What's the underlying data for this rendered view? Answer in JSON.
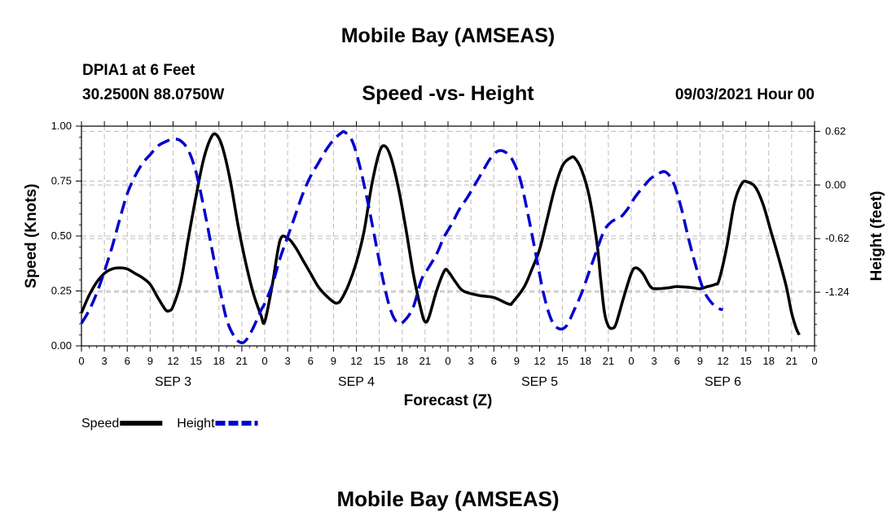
{
  "header": {
    "title": "Mobile Bay (AMSEAS)",
    "station": "DPIA1 at 6 Feet",
    "coords": "30.2500N  88.0750W",
    "datetime": "09/03/2021 Hour 00",
    "footer_title": "Mobile Bay (AMSEAS)"
  },
  "chart_data": {
    "type": "line",
    "title": "Speed -vs- Height",
    "xlabel": "Forecast (Z)",
    "ylabel": "Speed (Knots)",
    "y2label": "Height (feet)",
    "xlim": [
      0,
      96
    ],
    "ylim": [
      0,
      1.0
    ],
    "y2lim": [
      -1.86,
      0.68
    ],
    "grid": true,
    "legend_position": "bottom-left",
    "x_tick_labels": [
      "0",
      "3",
      "6",
      "9",
      "12",
      "15",
      "18",
      "21",
      "0",
      "3",
      "6",
      "9",
      "12",
      "15",
      "18",
      "21",
      "0",
      "3",
      "6",
      "9",
      "12",
      "15",
      "18",
      "21",
      "0",
      "3",
      "6",
      "9",
      "12",
      "15",
      "18",
      "21",
      "0"
    ],
    "y_tick_labels": [
      "0.00",
      "0.25",
      "0.50",
      "0.75",
      "1.00"
    ],
    "y_ticks": [
      0,
      0.25,
      0.5,
      0.75,
      1.0
    ],
    "y2_tick_labels": [
      "0.62",
      "0.00",
      "-0.62",
      "-1.24"
    ],
    "y2_ticks": [
      0.62,
      0.0,
      -0.62,
      -1.24
    ],
    "day_labels": [
      {
        "label": "SEP 3",
        "x": 12
      },
      {
        "label": "SEP 4",
        "x": 36
      },
      {
        "label": "SEP 5",
        "x": 60
      },
      {
        "label": "SEP 6",
        "x": 84
      }
    ],
    "series": [
      {
        "name": "Speed",
        "axis": "left",
        "color": "#000000",
        "style": "solid",
        "points": [
          [
            0,
            0.15
          ],
          [
            1,
            0.23
          ],
          [
            2,
            0.29
          ],
          [
            3,
            0.33
          ],
          [
            4,
            0.35
          ],
          [
            5,
            0.355
          ],
          [
            6,
            0.35
          ],
          [
            7,
            0.33
          ],
          [
            8,
            0.31
          ],
          [
            9,
            0.28
          ],
          [
            10,
            0.22
          ],
          [
            11,
            0.165
          ],
          [
            11.5,
            0.16
          ],
          [
            12,
            0.18
          ],
          [
            13,
            0.29
          ],
          [
            14,
            0.49
          ],
          [
            15,
            0.68
          ],
          [
            16,
            0.85
          ],
          [
            17,
            0.95
          ],
          [
            17.7,
            0.96
          ],
          [
            18.5,
            0.9
          ],
          [
            19.5,
            0.75
          ],
          [
            20.5,
            0.55
          ],
          [
            21.5,
            0.38
          ],
          [
            22.5,
            0.24
          ],
          [
            23.5,
            0.14
          ],
          [
            24,
            0.11
          ],
          [
            25,
            0.28
          ],
          [
            26,
            0.48
          ],
          [
            27,
            0.49
          ],
          [
            28,
            0.45
          ],
          [
            29,
            0.39
          ],
          [
            30,
            0.33
          ],
          [
            31,
            0.27
          ],
          [
            32,
            0.23
          ],
          [
            33,
            0.2
          ],
          [
            33.5,
            0.195
          ],
          [
            34,
            0.21
          ],
          [
            35,
            0.28
          ],
          [
            36,
            0.38
          ],
          [
            37,
            0.52
          ],
          [
            38,
            0.73
          ],
          [
            39,
            0.88
          ],
          [
            39.7,
            0.91
          ],
          [
            40.5,
            0.86
          ],
          [
            41.5,
            0.72
          ],
          [
            42.5,
            0.53
          ],
          [
            43.5,
            0.32
          ],
          [
            44.5,
            0.16
          ],
          [
            45,
            0.11
          ],
          [
            45.5,
            0.13
          ],
          [
            46.5,
            0.25
          ],
          [
            47.5,
            0.34
          ],
          [
            48,
            0.34
          ],
          [
            49,
            0.29
          ],
          [
            50,
            0.25
          ],
          [
            52,
            0.23
          ],
          [
            54,
            0.22
          ],
          [
            56,
            0.19
          ],
          [
            56.5,
            0.2
          ],
          [
            58,
            0.27
          ],
          [
            59,
            0.35
          ],
          [
            60,
            0.44
          ],
          [
            61,
            0.58
          ],
          [
            62,
            0.72
          ],
          [
            63,
            0.82
          ],
          [
            64,
            0.855
          ],
          [
            64.6,
            0.855
          ],
          [
            65.5,
            0.8
          ],
          [
            66.5,
            0.68
          ],
          [
            67.5,
            0.47
          ],
          [
            68,
            0.3
          ],
          [
            68.5,
            0.15
          ],
          [
            69,
            0.09
          ],
          [
            69.5,
            0.08
          ],
          [
            70,
            0.1
          ],
          [
            71,
            0.22
          ],
          [
            72,
            0.33
          ],
          [
            72.6,
            0.355
          ],
          [
            73.5,
            0.33
          ],
          [
            74.5,
            0.27
          ],
          [
            75.3,
            0.26
          ],
          [
            77,
            0.265
          ],
          [
            78,
            0.27
          ],
          [
            80,
            0.265
          ],
          [
            81,
            0.26
          ],
          [
            82,
            0.27
          ],
          [
            83,
            0.28
          ],
          [
            83.5,
            0.3
          ],
          [
            84.5,
            0.45
          ],
          [
            85.5,
            0.65
          ],
          [
            86.5,
            0.74
          ],
          [
            87.3,
            0.745
          ],
          [
            88.3,
            0.72
          ],
          [
            89.3,
            0.64
          ],
          [
            90.3,
            0.52
          ],
          [
            91.3,
            0.4
          ],
          [
            92.3,
            0.27
          ],
          [
            93,
            0.15
          ],
          [
            93.6,
            0.08
          ],
          [
            94,
            0.05
          ]
        ]
      },
      {
        "name": "Height",
        "axis": "right",
        "color": "#0000cc",
        "style": "dashed",
        "points": [
          [
            0,
            -1.6
          ],
          [
            1,
            -1.45
          ],
          [
            2,
            -1.25
          ],
          [
            3,
            -1.0
          ],
          [
            4,
            -0.72
          ],
          [
            5,
            -0.4
          ],
          [
            6,
            -0.1
          ],
          [
            7,
            0.1
          ],
          [
            8,
            0.25
          ],
          [
            9,
            0.35
          ],
          [
            10,
            0.45
          ],
          [
            11,
            0.5
          ],
          [
            12,
            0.53
          ],
          [
            13,
            0.51
          ],
          [
            14,
            0.4
          ],
          [
            15,
            0.15
          ],
          [
            16,
            -0.25
          ],
          [
            17,
            -0.7
          ],
          [
            18,
            -1.15
          ],
          [
            19,
            -1.55
          ],
          [
            20,
            -1.75
          ],
          [
            20.8,
            -1.82
          ],
          [
            21.5,
            -1.8
          ],
          [
            22.5,
            -1.65
          ],
          [
            23.5,
            -1.45
          ],
          [
            24,
            -1.37
          ],
          [
            25,
            -1.15
          ],
          [
            26,
            -0.85
          ],
          [
            27,
            -0.6
          ],
          [
            28,
            -0.35
          ],
          [
            29,
            -0.1
          ],
          [
            30,
            0.1
          ],
          [
            31,
            0.25
          ],
          [
            32,
            0.4
          ],
          [
            33,
            0.52
          ],
          [
            34,
            0.6
          ],
          [
            34.5,
            0.61
          ],
          [
            35.5,
            0.5
          ],
          [
            36.5,
            0.2
          ],
          [
            37.5,
            -0.2
          ],
          [
            38.5,
            -0.65
          ],
          [
            39.5,
            -1.1
          ],
          [
            40.5,
            -1.45
          ],
          [
            41.5,
            -1.6
          ],
          [
            42.5,
            -1.55
          ],
          [
            43.5,
            -1.4
          ],
          [
            44.5,
            -1.1
          ],
          [
            45.5,
            -0.95
          ],
          [
            46.5,
            -0.8
          ],
          [
            47.5,
            -0.6
          ],
          [
            48.5,
            -0.45
          ],
          [
            49.5,
            -0.28
          ],
          [
            50.5,
            -0.15
          ],
          [
            51.5,
            0.0
          ],
          [
            52.5,
            0.15
          ],
          [
            53.5,
            0.3
          ],
          [
            54.5,
            0.39
          ],
          [
            55.5,
            0.38
          ],
          [
            56.5,
            0.28
          ],
          [
            57.5,
            0.05
          ],
          [
            58.5,
            -0.35
          ],
          [
            59.5,
            -0.8
          ],
          [
            60.5,
            -1.25
          ],
          [
            61.5,
            -1.55
          ],
          [
            62.5,
            -1.66
          ],
          [
            63.5,
            -1.63
          ],
          [
            64.5,
            -1.45
          ],
          [
            65.5,
            -1.25
          ],
          [
            66.5,
            -1.0
          ],
          [
            67.5,
            -0.75
          ],
          [
            68.5,
            -0.52
          ],
          [
            69.5,
            -0.42
          ],
          [
            70.5,
            -0.38
          ],
          [
            71.5,
            -0.28
          ],
          [
            72.5,
            -0.14
          ],
          [
            73.5,
            -0.03
          ],
          [
            74.5,
            0.07
          ],
          [
            75.5,
            0.13
          ],
          [
            76.5,
            0.15
          ],
          [
            77.5,
            0.03
          ],
          [
            78.5,
            -0.25
          ],
          [
            79.5,
            -0.62
          ],
          [
            80.5,
            -0.95
          ],
          [
            81.5,
            -1.22
          ],
          [
            82.5,
            -1.36
          ],
          [
            83.5,
            -1.43
          ],
          [
            84,
            -1.44
          ]
        ]
      }
    ]
  }
}
